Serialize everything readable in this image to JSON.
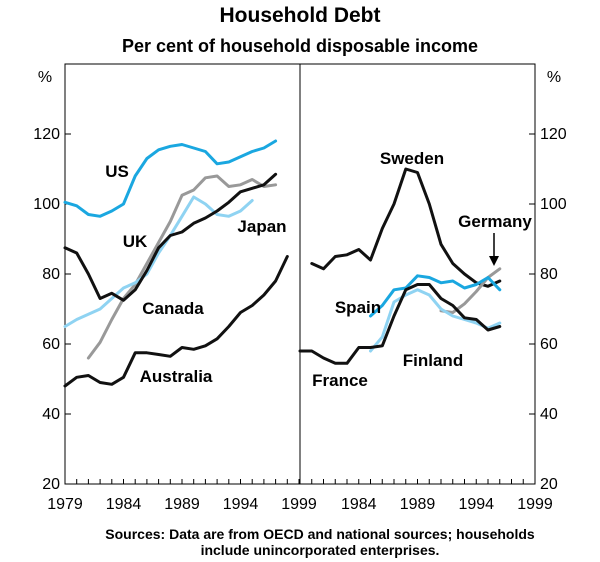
{
  "title": "Household Debt",
  "subtitle": "Per cent of household disposable income",
  "note_line1": "Sources: Data are from OECD and national sources; households",
  "note_line2": "include unincorporated enterprises.",
  "chart_data": {
    "type": "line",
    "unit": "%",
    "ylim": [
      20,
      140
    ],
    "yticks": [
      20,
      40,
      60,
      80,
      100,
      120
    ],
    "grid": false,
    "colors": {
      "US": "#1aa7e0",
      "UK": "#999999",
      "Japan": "#8fd3f2",
      "Canada": "#111111",
      "Australia": "#111111",
      "Sweden": "#111111",
      "Germany": "#999999",
      "Spain": "#1aa7e0",
      "Finland": "#8fd3f2",
      "France": "#111111"
    },
    "panels": [
      {
        "xlim": [
          1979,
          1999
        ],
        "xticks": [
          1979,
          1984,
          1989,
          1994,
          1999
        ],
        "series": [
          {
            "name": "US",
            "x": [
              1979,
              1980,
              1981,
              1982,
              1983,
              1984,
              1985,
              1986,
              1987,
              1988,
              1989,
              1990,
              1991,
              1992,
              1993,
              1994,
              1995,
              1996,
              1997
            ],
            "y": [
              100.5,
              99.5,
              97,
              96.5,
              98,
              100,
              108,
              113,
              115.5,
              116.5,
              117,
              116,
              115,
              111.5,
              112,
              113.5,
              115,
              116,
              118
            ]
          },
          {
            "name": "UK",
            "x": [
              1981,
              1982,
              1983,
              1984,
              1985,
              1986,
              1987,
              1988,
              1989,
              1990,
              1991,
              1992,
              1993,
              1994,
              1995,
              1996,
              1997
            ],
            "y": [
              56,
              60.5,
              67,
              73,
              77,
              83,
              89,
              95,
              102.5,
              104,
              107.5,
              108,
              105,
              105.5,
              107,
              105,
              105.5
            ]
          },
          {
            "name": "Japan",
            "x": [
              1979,
              1980,
              1981,
              1982,
              1983,
              1984,
              1985,
              1986,
              1987,
              1988,
              1989,
              1990,
              1991,
              1992,
              1993,
              1994,
              1995
            ],
            "y": [
              65,
              67,
              68.5,
              70,
              73,
              76,
              77.5,
              80,
              86,
              91,
              96.5,
              102,
              100,
              97,
              96.5,
              98,
              101
            ]
          },
          {
            "name": "Canada",
            "x": [
              1979,
              1980,
              1981,
              1982,
              1983,
              1984,
              1985,
              1986,
              1987,
              1988,
              1989,
              1990,
              1991,
              1992,
              1993,
              1994,
              1995,
              1996,
              1997
            ],
            "y": [
              87.5,
              86,
              80,
              73,
              74.5,
              72.5,
              75.5,
              81,
              87.5,
              91,
              92,
              94.5,
              96,
              98,
              100.5,
              103.5,
              104.5,
              105.5,
              108.5
            ]
          },
          {
            "name": "Australia",
            "x": [
              1979,
              1980,
              1981,
              1982,
              1983,
              1984,
              1985,
              1986,
              1987,
              1988,
              1989,
              1990,
              1991,
              1992,
              1993,
              1994,
              1995,
              1996,
              1997,
              1998
            ],
            "y": [
              48,
              50.5,
              51,
              49,
              48.5,
              50.5,
              57.5,
              57.5,
              57,
              56.5,
              59,
              58.5,
              59.5,
              61.5,
              65,
              69,
              71,
              74,
              78,
              85
            ]
          }
        ],
        "labels": [
          {
            "text": "US",
            "series": "US"
          },
          {
            "text": "UK",
            "series": "UK"
          },
          {
            "text": "Japan",
            "series": "Japan"
          },
          {
            "text": "Canada",
            "series": "Canada"
          },
          {
            "text": "Australia",
            "series": "Australia"
          }
        ]
      },
      {
        "xlim": [
          1979,
          1999
        ],
        "xticks": [
          1984,
          1989,
          1994,
          1999
        ],
        "series": [
          {
            "name": "Sweden",
            "x": [
              1980,
              1981,
              1982,
              1983,
              1984,
              1985,
              1986,
              1987,
              1988,
              1989,
              1990,
              1991,
              1992,
              1993,
              1994,
              1995,
              1996
            ],
            "y": [
              83,
              81.5,
              85,
              85.5,
              87,
              84,
              93,
              100,
              110,
              109,
              100,
              88.5,
              83,
              80,
              77.5,
              76.5,
              78
            ]
          },
          {
            "name": "Germany",
            "x": [
              1991,
              1992,
              1993,
              1994,
              1995,
              1996
            ],
            "y": [
              69.5,
              69,
              71.5,
              75,
              79,
              81.5
            ]
          },
          {
            "name": "Spain",
            "x": [
              1985,
              1986,
              1987,
              1988,
              1989,
              1990,
              1991,
              1992,
              1993,
              1994,
              1995,
              1996
            ],
            "y": [
              68,
              71,
              75.5,
              76,
              79.5,
              79,
              77.5,
              78,
              76,
              77,
              79,
              75.5
            ]
          },
          {
            "name": "Finland",
            "x": [
              1985,
              1986,
              1987,
              1988,
              1989,
              1990,
              1991,
              1992,
              1993,
              1994,
              1995,
              1996
            ],
            "y": [
              58,
              62,
              72,
              74,
              75.5,
              74,
              70,
              68,
              67,
              66,
              64.5,
              66
            ]
          },
          {
            "name": "France",
            "x": [
              1979,
              1980,
              1981,
              1982,
              1983,
              1984,
              1985,
              1986,
              1987,
              1988,
              1989,
              1990,
              1991,
              1992,
              1993,
              1994,
              1995,
              1996
            ],
            "y": [
              58,
              58,
              56,
              54.5,
              54.5,
              59,
              59,
              59.5,
              68,
              75.5,
              77,
              77,
              73,
              71,
              67.5,
              67,
              64,
              65
            ]
          }
        ],
        "labels": [
          {
            "text": "Sweden",
            "series": "Sweden"
          },
          {
            "text": "Germany",
            "series": "Germany"
          },
          {
            "text": "Spain",
            "series": "Spain"
          },
          {
            "text": "Finland",
            "series": "Finland"
          },
          {
            "text": "France",
            "series": "France"
          }
        ]
      }
    ]
  }
}
